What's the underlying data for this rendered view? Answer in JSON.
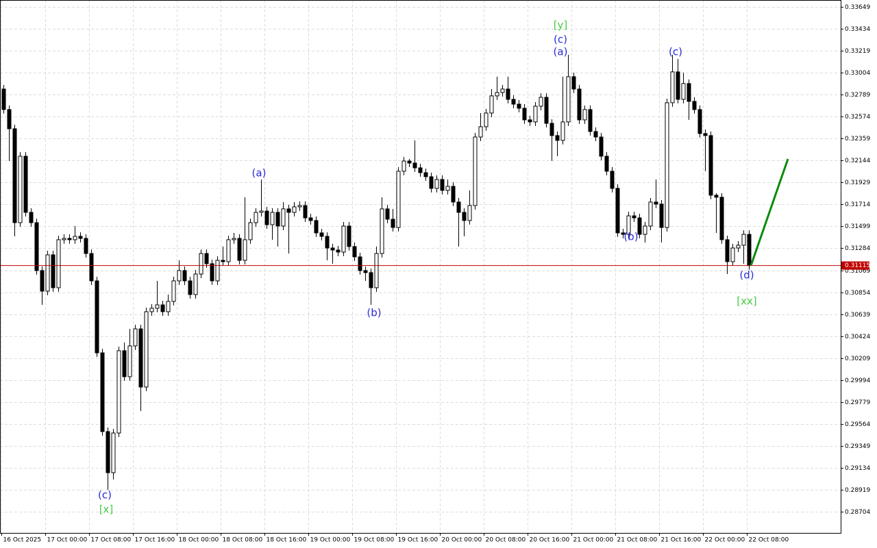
{
  "chart_data": {
    "type": "candlestick",
    "x_labels": [
      "16 Oct 2025",
      "17 Oct 00:00",
      "17 Oct 08:00",
      "17 Oct 16:00",
      "18 Oct 00:00",
      "18 Oct 08:00",
      "18 Oct 16:00",
      "19 Oct 00:00",
      "19 Oct 08:00",
      "19 Oct 16:00",
      "20 Oct 00:00",
      "20 Oct 08:00",
      "20 Oct 16:00",
      "21 Oct 00:00",
      "21 Oct 08:00",
      "21 Oct 16:00",
      "22 Oct 00:00",
      "22 Oct 08:00"
    ],
    "open": [
      0.32844,
      0.32643,
      0.32455,
      0.31535,
      0.32186,
      0.31636,
      0.31535,
      0.31066,
      0.30864,
      0.3122,
      0.30898,
      0.31368,
      0.31381,
      0.31368,
      0.31401,
      0.31381,
      0.31233,
      0.30965,
      0.3026,
      0.29489,
      0.29086,
      0.29475,
      0.30281,
      0.30026,
      0.30328,
      0.30495,
      0.29925,
      0.30663,
      0.30697,
      0.3073,
      0.30663,
      0.30764,
      0.30965,
      0.31066,
      0.30965,
      0.30831,
      0.31032,
      0.31233,
      0.31133,
      0.30965,
      0.31166,
      0.31153,
      0.31368,
      0.31381,
      0.31166,
      0.31368,
      0.31535,
      0.31636,
      0.31649,
      0.31515,
      0.31636,
      0.31502,
      0.3167,
      0.31636,
      0.3169,
      0.31703,
      0.31582,
      0.31556,
      0.31435,
      0.31401,
      0.31287,
      0.31267,
      0.31247,
      0.31502,
      0.31301,
      0.312,
      0.31066,
      0.31046,
      0.30898,
      0.31233,
      0.3167,
      0.31569,
      0.31488,
      0.32039,
      0.32139,
      0.32119,
      0.32072,
      0.32025,
      0.31985,
      0.31871,
      0.31958,
      0.31851,
      0.31891,
      0.31737,
      0.31636,
      0.31556,
      0.31703,
      0.32374,
      0.32475,
      0.32609,
      0.32777,
      0.3281,
      0.32844,
      0.32743,
      0.32696,
      0.32656,
      0.32542,
      0.32522,
      0.32676,
      0.32763,
      0.32508,
      0.32388,
      0.32341,
      0.32522,
      0.32965,
      0.32844,
      0.32542,
      0.32643,
      0.32428,
      0.32374,
      0.32186,
      0.32039,
      0.31871,
      0.31435,
      0.31421,
      0.31602,
      0.31582,
      0.31421,
      0.31502,
      0.31737,
      0.31717,
      0.31488,
      0.3271,
      0.33012,
      0.32743,
      0.32898,
      0.32723,
      0.32643,
      0.32408,
      0.32388,
      0.31804,
      0.31784,
      0.31368,
      0.31153,
      0.31287,
      0.31314,
      0.31421
    ],
    "high": [
      0.32884,
      0.32683,
      0.32495,
      0.32226,
      0.32226,
      0.31676,
      0.31575,
      0.31106,
      0.3126,
      0.3126,
      0.31408,
      0.31421,
      0.31421,
      0.31502,
      0.31441,
      0.31421,
      0.31273,
      0.31005,
      0.303,
      0.29529,
      0.29515,
      0.30321,
      0.30361,
      0.30495,
      0.30535,
      0.30535,
      0.30703,
      0.30737,
      0.30965,
      0.3077,
      0.30831,
      0.31005,
      0.31166,
      0.31106,
      0.31005,
      0.31072,
      0.31273,
      0.31273,
      0.31173,
      0.31206,
      0.31301,
      0.31408,
      0.31435,
      0.31421,
      0.31784,
      0.31575,
      0.31676,
      0.31958,
      0.31689,
      0.31676,
      0.31676,
      0.31737,
      0.3171,
      0.31737,
      0.31743,
      0.31743,
      0.31622,
      0.31596,
      0.31475,
      0.31441,
      0.31327,
      0.31307,
      0.31542,
      0.31542,
      0.31341,
      0.3124,
      0.31106,
      0.31086,
      0.31301,
      0.31784,
      0.3171,
      0.3167,
      0.32079,
      0.32179,
      0.32159,
      0.32341,
      0.32112,
      0.32065,
      0.32025,
      0.31998,
      0.31998,
      0.31958,
      0.31931,
      0.31777,
      0.31676,
      0.31851,
      0.32414,
      0.32609,
      0.32649,
      0.32844,
      0.32965,
      0.32884,
      0.32965,
      0.32783,
      0.32736,
      0.32696,
      0.32582,
      0.32716,
      0.32803,
      0.32803,
      0.32548,
      0.32428,
      0.32965,
      0.33179,
      0.33005,
      0.32884,
      0.32683,
      0.32683,
      0.32468,
      0.32414,
      0.32226,
      0.32079,
      0.31911,
      0.31475,
      0.31642,
      0.31642,
      0.31622,
      0.31542,
      0.31777,
      0.31958,
      0.31757,
      0.3275,
      0.33179,
      0.33139,
      0.33005,
      0.32938,
      0.32763,
      0.32683,
      0.32448,
      0.32428,
      0.31824,
      0.31824,
      0.31408,
      0.31327,
      0.31354,
      0.31461,
      0.31461
    ],
    "low": [
      0.32603,
      0.32139,
      0.31401,
      0.31495,
      0.31596,
      0.31495,
      0.31026,
      0.3073,
      0.30824,
      0.30858,
      0.30858,
      0.31328,
      0.31328,
      0.31328,
      0.31341,
      0.31193,
      0.30925,
      0.3022,
      0.29449,
      0.28918,
      0.29019,
      0.29435,
      0.29986,
      0.29986,
      0.30288,
      0.2969,
      0.29885,
      0.30623,
      0.30657,
      0.30623,
      0.30623,
      0.30724,
      0.30925,
      0.30925,
      0.30791,
      0.30791,
      0.30992,
      0.31093,
      0.30925,
      0.30925,
      0.31113,
      0.31113,
      0.31328,
      0.31126,
      0.31126,
      0.31328,
      0.31495,
      0.31596,
      0.31475,
      0.31368,
      0.31301,
      0.31462,
      0.31233,
      0.31596,
      0.3165,
      0.31542,
      0.31516,
      0.31395,
      0.31361,
      0.31166,
      0.31133,
      0.31207,
      0.31207,
      0.31261,
      0.3116,
      0.31026,
      0.30965,
      0.3073,
      0.30858,
      0.31193,
      0.31529,
      0.31448,
      0.31448,
      0.31999,
      0.32079,
      0.32032,
      0.31985,
      0.31945,
      0.31831,
      0.31831,
      0.31811,
      0.31811,
      0.31697,
      0.31301,
      0.31401,
      0.31516,
      0.31663,
      0.32334,
      0.32435,
      0.32569,
      0.32737,
      0.3277,
      0.32703,
      0.32656,
      0.32616,
      0.32502,
      0.32482,
      0.32482,
      0.32636,
      0.32468,
      0.32139,
      0.32186,
      0.32301,
      0.32482,
      0.32804,
      0.32502,
      0.32502,
      0.32388,
      0.32334,
      0.32146,
      0.31999,
      0.31831,
      0.31395,
      0.31381,
      0.31381,
      0.31542,
      0.31381,
      0.31341,
      0.31462,
      0.31677,
      0.31341,
      0.31448,
      0.3267,
      0.32703,
      0.32703,
      0.32542,
      0.32603,
      0.32368,
      0.32039,
      0.31764,
      0.31435,
      0.31328,
      0.31032,
      0.31113,
      0.31247,
      0.31133,
      0.31075
    ],
    "close": [
      0.32643,
      0.32455,
      0.31535,
      0.32186,
      0.31636,
      0.31535,
      0.31066,
      0.30864,
      0.3122,
      0.30898,
      0.31368,
      0.31381,
      0.31368,
      0.31401,
      0.31381,
      0.31233,
      0.30965,
      0.3026,
      0.29489,
      0.29086,
      0.29475,
      0.30281,
      0.30026,
      0.30328,
      0.30495,
      0.29925,
      0.30663,
      0.30697,
      0.3073,
      0.30663,
      0.30764,
      0.30965,
      0.31066,
      0.30965,
      0.30831,
      0.31032,
      0.31233,
      0.31133,
      0.30965,
      0.31166,
      0.31153,
      0.31368,
      0.31381,
      0.31166,
      0.31368,
      0.31535,
      0.31636,
      0.31649,
      0.31515,
      0.31636,
      0.31502,
      0.3167,
      0.31636,
      0.3169,
      0.31703,
      0.31582,
      0.31556,
      0.31435,
      0.31401,
      0.31287,
      0.31267,
      0.31247,
      0.31502,
      0.31301,
      0.312,
      0.31066,
      0.31046,
      0.30898,
      0.31233,
      0.3167,
      0.31569,
      0.31488,
      0.32039,
      0.32139,
      0.32119,
      0.32072,
      0.32025,
      0.31985,
      0.31871,
      0.31958,
      0.31851,
      0.31891,
      0.31737,
      0.31636,
      0.31556,
      0.31703,
      0.32374,
      0.32475,
      0.32609,
      0.32777,
      0.3281,
      0.32844,
      0.32743,
      0.32696,
      0.32656,
      0.32542,
      0.32522,
      0.32676,
      0.32763,
      0.32508,
      0.32388,
      0.32341,
      0.32522,
      0.32965,
      0.32844,
      0.32542,
      0.32643,
      0.32428,
      0.32374,
      0.32186,
      0.32039,
      0.31871,
      0.31435,
      0.31421,
      0.31602,
      0.31582,
      0.31421,
      0.31502,
      0.31737,
      0.31717,
      0.31488,
      0.3271,
      0.33012,
      0.32743,
      0.32898,
      0.32723,
      0.32643,
      0.32408,
      0.32388,
      0.31804,
      0.31784,
      0.31368,
      0.31153,
      0.31287,
      0.31314,
      0.31421,
      0.31115
    ],
    "bull_color": "#ffffff",
    "bear_color": "#000000",
    "ylim": [
      0.28496,
      0.33716
    ],
    "yticks": [
      0.33649,
      0.33434,
      0.33219,
      0.33004,
      0.32789,
      0.32574,
      0.32359,
      0.32144,
      0.31929,
      0.31714,
      0.31499,
      0.31284,
      0.31069,
      0.30854,
      0.30639,
      0.30424,
      0.30209,
      0.29994,
      0.29779,
      0.29564,
      0.29349,
      0.29134,
      0.28919,
      0.28704
    ],
    "grid": true,
    "current_price": {
      "value": 0.31115,
      "color": "#c00000"
    },
    "forecast": {
      "color": "#0a8a0a",
      "values": [
        0.31115,
        0.32159
      ]
    },
    "annotations": [
      {
        "text": "(c)",
        "color": "#2a2ad8"
      },
      {
        "text": "[x]",
        "color": "#44cc44"
      },
      {
        "text": "(a)",
        "color": "#2a2ad8"
      },
      {
        "text": "(b)",
        "color": "#2a2ad8"
      },
      {
        "text": "[y]",
        "color": "#44cc44"
      },
      {
        "text": "(c)",
        "color": "#2a2ad8"
      },
      {
        "text": "(a)",
        "color": "#2a2ad8"
      },
      {
        "text": "(b)",
        "color": "#2a2ad8"
      },
      {
        "text": "(c)",
        "color": "#2a2ad8"
      },
      {
        "text": "(d)",
        "color": "#2a2ad8"
      },
      {
        "text": "[xx]",
        "color": "#44cc44"
      }
    ]
  }
}
